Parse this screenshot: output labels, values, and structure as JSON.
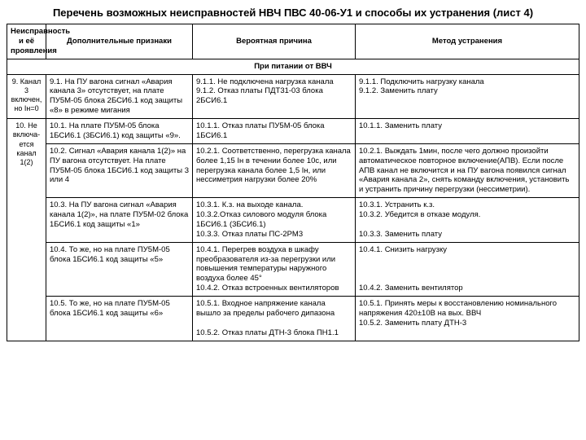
{
  "title": "Перечень возможных неисправностей НВЧ ПВС 40-06-У1 и способы их устранения  (лист 4)",
  "headers": {
    "c1": "Неисправность и её проявления",
    "c2": "Дополнительные признаки",
    "c3": "Вероятная причина",
    "c4": "Метод устранения"
  },
  "section": "При питании от ВВЧ",
  "rows": [
    {
      "c1": "9. Канал 3 включен, но Iн=0",
      "c2": "9.1. На ПУ вагона сигнал «Авария канала 3» отсутствует, на плате ПУ5М-05 блока 2БСИ6.1 код защиты «8» в режиме мигания",
      "c3": "9.1.1. Не подключена нагрузка канала\n9.1.2. Отказ платы ПДТ31-03 блока 2БСИ6.1",
      "c4": "9.1.1. Подключить нагрузку канала\n9.1.2. Заменить плату"
    },
    {
      "c1": "10. Не включа-ется канал 1(2)",
      "c2": "10.1. На плате ПУ5М-05 блока 1БСИ6.1 (3БСИ6.1) код защиты «9».",
      "c3": "10.1.1. Отказ платы ПУ5М-05 блока 1БСИ6.1",
      "c4": "10.1.1. Заменить плату",
      "rowspan": 5
    },
    {
      "c2": "10.2. Сигнал «Авария канала 1(2)» на ПУ вагона отсутствует. На плате ПУ5М-05 блока 1БСИ6.1 код защиты 3 или 4",
      "c3": "10.2.1. Соответственно, перегрузка канала более 1,15 Iн в течении более 10с, или перегрузка канала более 1,5 Iн, или нессиметрия нагрузки более 20%",
      "c4": "10.2.1. Выждать 1мин, после чего должно произойти автоматическое повторное включение(АПВ). Если после АПВ канал не включится и на ПУ вагона появился сигнал «Авария канала 2», снять команду включения, установить и устранить причину перегрузки (нессиметрии)."
    },
    {
      "c2": "10.3. На ПУ вагона сигнал «Авария канала 1(2)», на плате ПУ5М-02 блока 1БСИ6.1 код защиты «1»",
      "c3": "10.3.1. К.з. на выходе канала.\n10.3.2.Отказ силового модуля блока 1БСИ6.1 (3БСИ6.1)\n10.3.3. Отказ платы ПС-2РМ3",
      "c4": "10.3.1.  Устранить к.з.\n10.3.2. Убедится в отказе модуля.\n\n10.3.3. Заменить плату"
    },
    {
      "c2": "10.4. То же, но на плате ПУ5М-05 блока 1БСИ6.1 код защиты «5»",
      "c3": "10.4.1. Перегрев воздуха в шкафу преобразователя из-за перегрузки или повышения температуры наружного воздуха более 45°\n10.4.2. Отказ встроенных вентиляторов",
      "c4": "10.4.1. Снизить нагрузку\n\n\n\n10.4.2. Заменить вентилятор"
    },
    {
      "c2": "10.5. То же, но на плате ПУ5М-05 блока 1БСИ6.1 код защиты «6»",
      "c3": "10.5.1. Входное напряжение канала вышло за пределы рабочего дипазона\n\n10.5.2. Отказ платы ДТН-3 блока ПН1.1",
      "c4": "10.5.1. Принять меры к восстановлению номинального напряжения 420±10В на вых. ВВЧ\n10.5.2. Заменить плату ДТН-3"
    }
  ]
}
